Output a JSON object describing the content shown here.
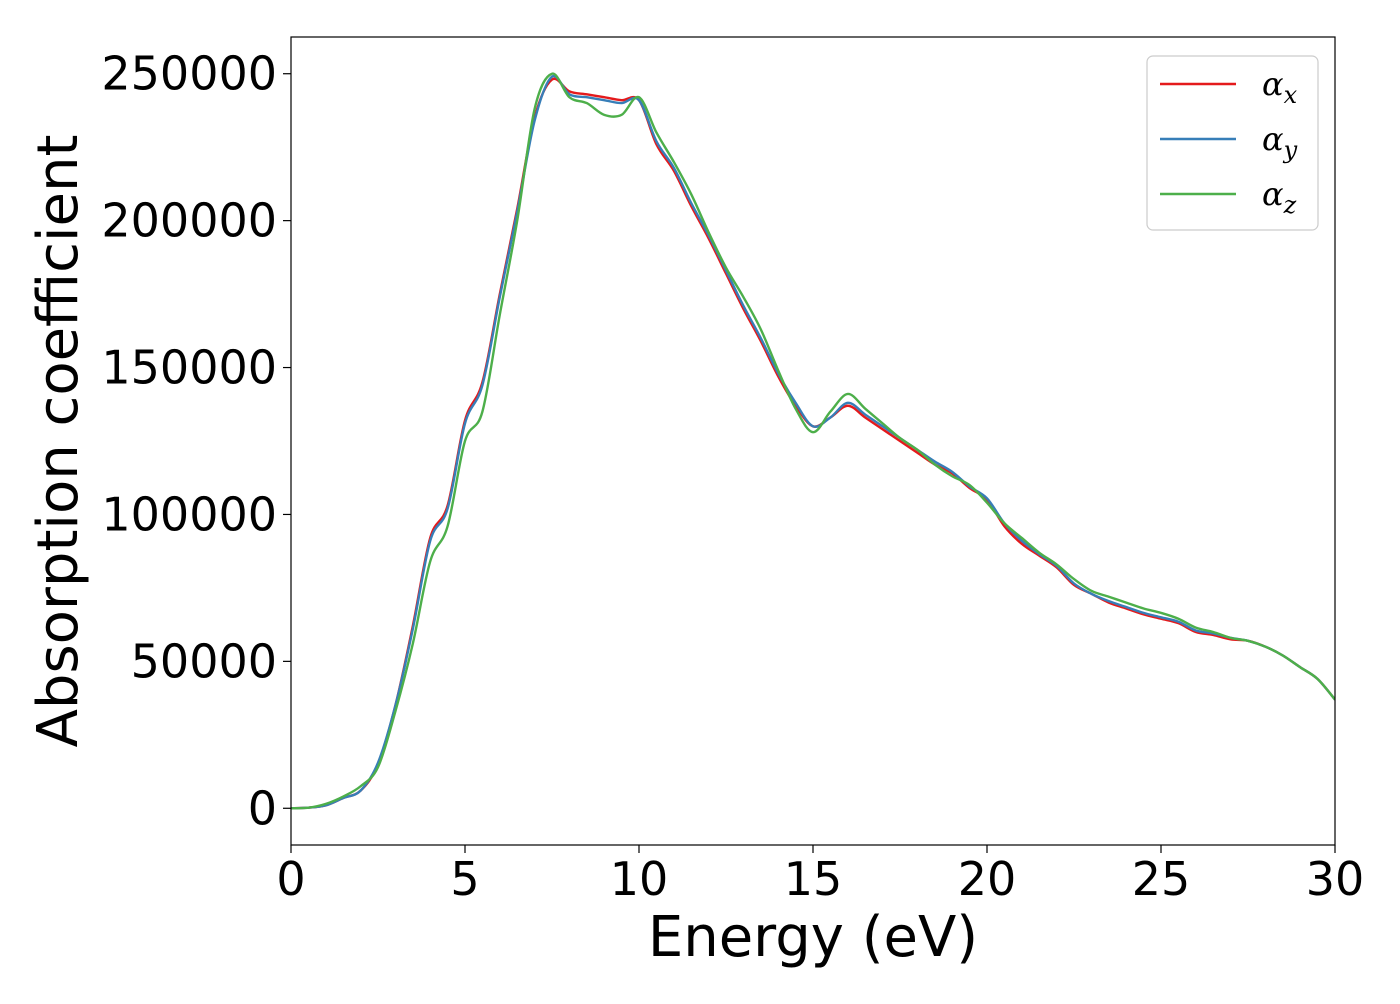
{
  "chart_data": {
    "type": "line",
    "title": "",
    "xlabel": "Energy (eV)",
    "ylabel": "Absorption coefficient",
    "xlim": [
      0,
      30
    ],
    "ylim": [
      -12500,
      262500
    ],
    "xticks": [
      0,
      5,
      10,
      15,
      20,
      25,
      30
    ],
    "xtick_labels": [
      "0",
      "5",
      "10",
      "15",
      "20",
      "25",
      "30"
    ],
    "yticks": [
      0,
      50000,
      100000,
      150000,
      200000,
      250000
    ],
    "ytick_labels": [
      "0",
      "50000",
      "100000",
      "150000",
      "200000",
      "250000"
    ],
    "grid": false,
    "legend_position": "top-right",
    "series": [
      {
        "name": "α",
        "subscript": "x",
        "color": "#e41a1c",
        "x": [
          0,
          0.5,
          1.0,
          1.5,
          2.0,
          2.5,
          3.0,
          3.5,
          4.0,
          4.5,
          5.0,
          5.5,
          6.0,
          6.5,
          7.0,
          7.5,
          8.0,
          8.5,
          9.0,
          9.5,
          10.0,
          10.5,
          11.0,
          11.5,
          12.0,
          12.5,
          13.0,
          13.5,
          14.0,
          14.5,
          15.0,
          15.5,
          16.0,
          16.5,
          17.0,
          17.5,
          18.0,
          18.5,
          19.0,
          19.5,
          20.0,
          20.5,
          21.0,
          21.5,
          22.0,
          22.5,
          23.0,
          23.5,
          24.0,
          24.5,
          25.0,
          25.5,
          26.0,
          26.5,
          27.0,
          27.5,
          28.0,
          28.5,
          29.0,
          29.5,
          30.0
        ],
        "y": [
          0,
          200,
          1000,
          3500,
          6000,
          15000,
          35000,
          62000,
          92000,
          103000,
          132000,
          145000,
          175000,
          204000,
          235000,
          248000,
          244000,
          243000,
          242000,
          241000,
          241000,
          226000,
          217000,
          205000,
          194000,
          182000,
          170000,
          159000,
          147000,
          137000,
          130000,
          133000,
          137000,
          133000,
          129000,
          125000,
          121000,
          117000,
          114000,
          109000,
          105000,
          96000,
          90000,
          86000,
          82000,
          76000,
          73000,
          70000,
          68000,
          66000,
          64500,
          63000,
          60000,
          59000,
          57500,
          57000,
          55000,
          52000,
          48000,
          44000,
          37000
        ]
      },
      {
        "name": "α",
        "subscript": "y",
        "color": "#377eb8",
        "x": [
          0,
          0.5,
          1.0,
          1.5,
          2.0,
          2.5,
          3.0,
          3.5,
          4.0,
          4.5,
          5.0,
          5.5,
          6.0,
          6.5,
          7.0,
          7.5,
          8.0,
          8.5,
          9.0,
          9.5,
          10.0,
          10.5,
          11.0,
          11.5,
          12.0,
          12.5,
          13.0,
          13.5,
          14.0,
          14.5,
          15.0,
          15.5,
          16.0,
          16.5,
          17.0,
          17.5,
          18.0,
          18.5,
          19.0,
          19.5,
          20.0,
          20.5,
          21.0,
          21.5,
          22.0,
          22.5,
          23.0,
          23.5,
          24.0,
          24.5,
          25.0,
          25.5,
          26.0,
          26.5,
          27.0,
          27.5,
          28.0,
          28.5,
          29.0,
          29.5,
          30.0
        ],
        "y": [
          0,
          200,
          1000,
          3500,
          6000,
          15500,
          35000,
          61000,
          91000,
          102000,
          131000,
          144000,
          174000,
          203000,
          234000,
          249000,
          243000,
          242000,
          241000,
          240000,
          241000,
          227000,
          218000,
          206000,
          195000,
          183000,
          171000,
          160000,
          148000,
          138000,
          130000,
          133000,
          138000,
          134000,
          130000,
          126000,
          122000,
          118000,
          114500,
          109500,
          105500,
          97000,
          91000,
          86500,
          82500,
          76500,
          73000,
          70500,
          68500,
          66500,
          65000,
          63500,
          60500,
          59500,
          58000,
          57000,
          55000,
          52000,
          48000,
          44000,
          37000
        ]
      },
      {
        "name": "α",
        "subscript": "z",
        "color": "#4daf4a",
        "x": [
          0,
          0.5,
          1.0,
          1.5,
          2.0,
          2.5,
          3.0,
          3.5,
          4.0,
          4.5,
          5.0,
          5.5,
          6.0,
          6.5,
          7.0,
          7.5,
          8.0,
          8.5,
          9.0,
          9.5,
          10.0,
          10.5,
          11.0,
          11.5,
          12.0,
          12.5,
          13.0,
          13.5,
          14.0,
          14.5,
          15.0,
          15.5,
          16.0,
          16.5,
          17.0,
          17.5,
          18.0,
          18.5,
          19.0,
          19.5,
          20.0,
          20.5,
          21.0,
          21.5,
          22.0,
          22.5,
          23.0,
          23.5,
          24.0,
          24.5,
          25.0,
          25.5,
          26.0,
          26.5,
          27.0,
          27.5,
          28.0,
          28.5,
          29.0,
          29.5,
          30.0
        ],
        "y": [
          0,
          200,
          1500,
          4000,
          7500,
          14000,
          33000,
          56000,
          84000,
          96000,
          125000,
          135000,
          168000,
          200000,
          238000,
          250000,
          242000,
          240000,
          236000,
          236000,
          242000,
          230000,
          220000,
          209000,
          196000,
          184000,
          174000,
          163000,
          149000,
          136000,
          128000,
          135000,
          141000,
          136000,
          131000,
          126000,
          122000,
          117000,
          113000,
          110000,
          104000,
          97000,
          92000,
          87000,
          83000,
          78000,
          74000,
          72000,
          70000,
          68000,
          66500,
          64500,
          61500,
          60000,
          58000,
          57000,
          55000,
          52000,
          48000,
          44000,
          37000
        ]
      }
    ]
  }
}
